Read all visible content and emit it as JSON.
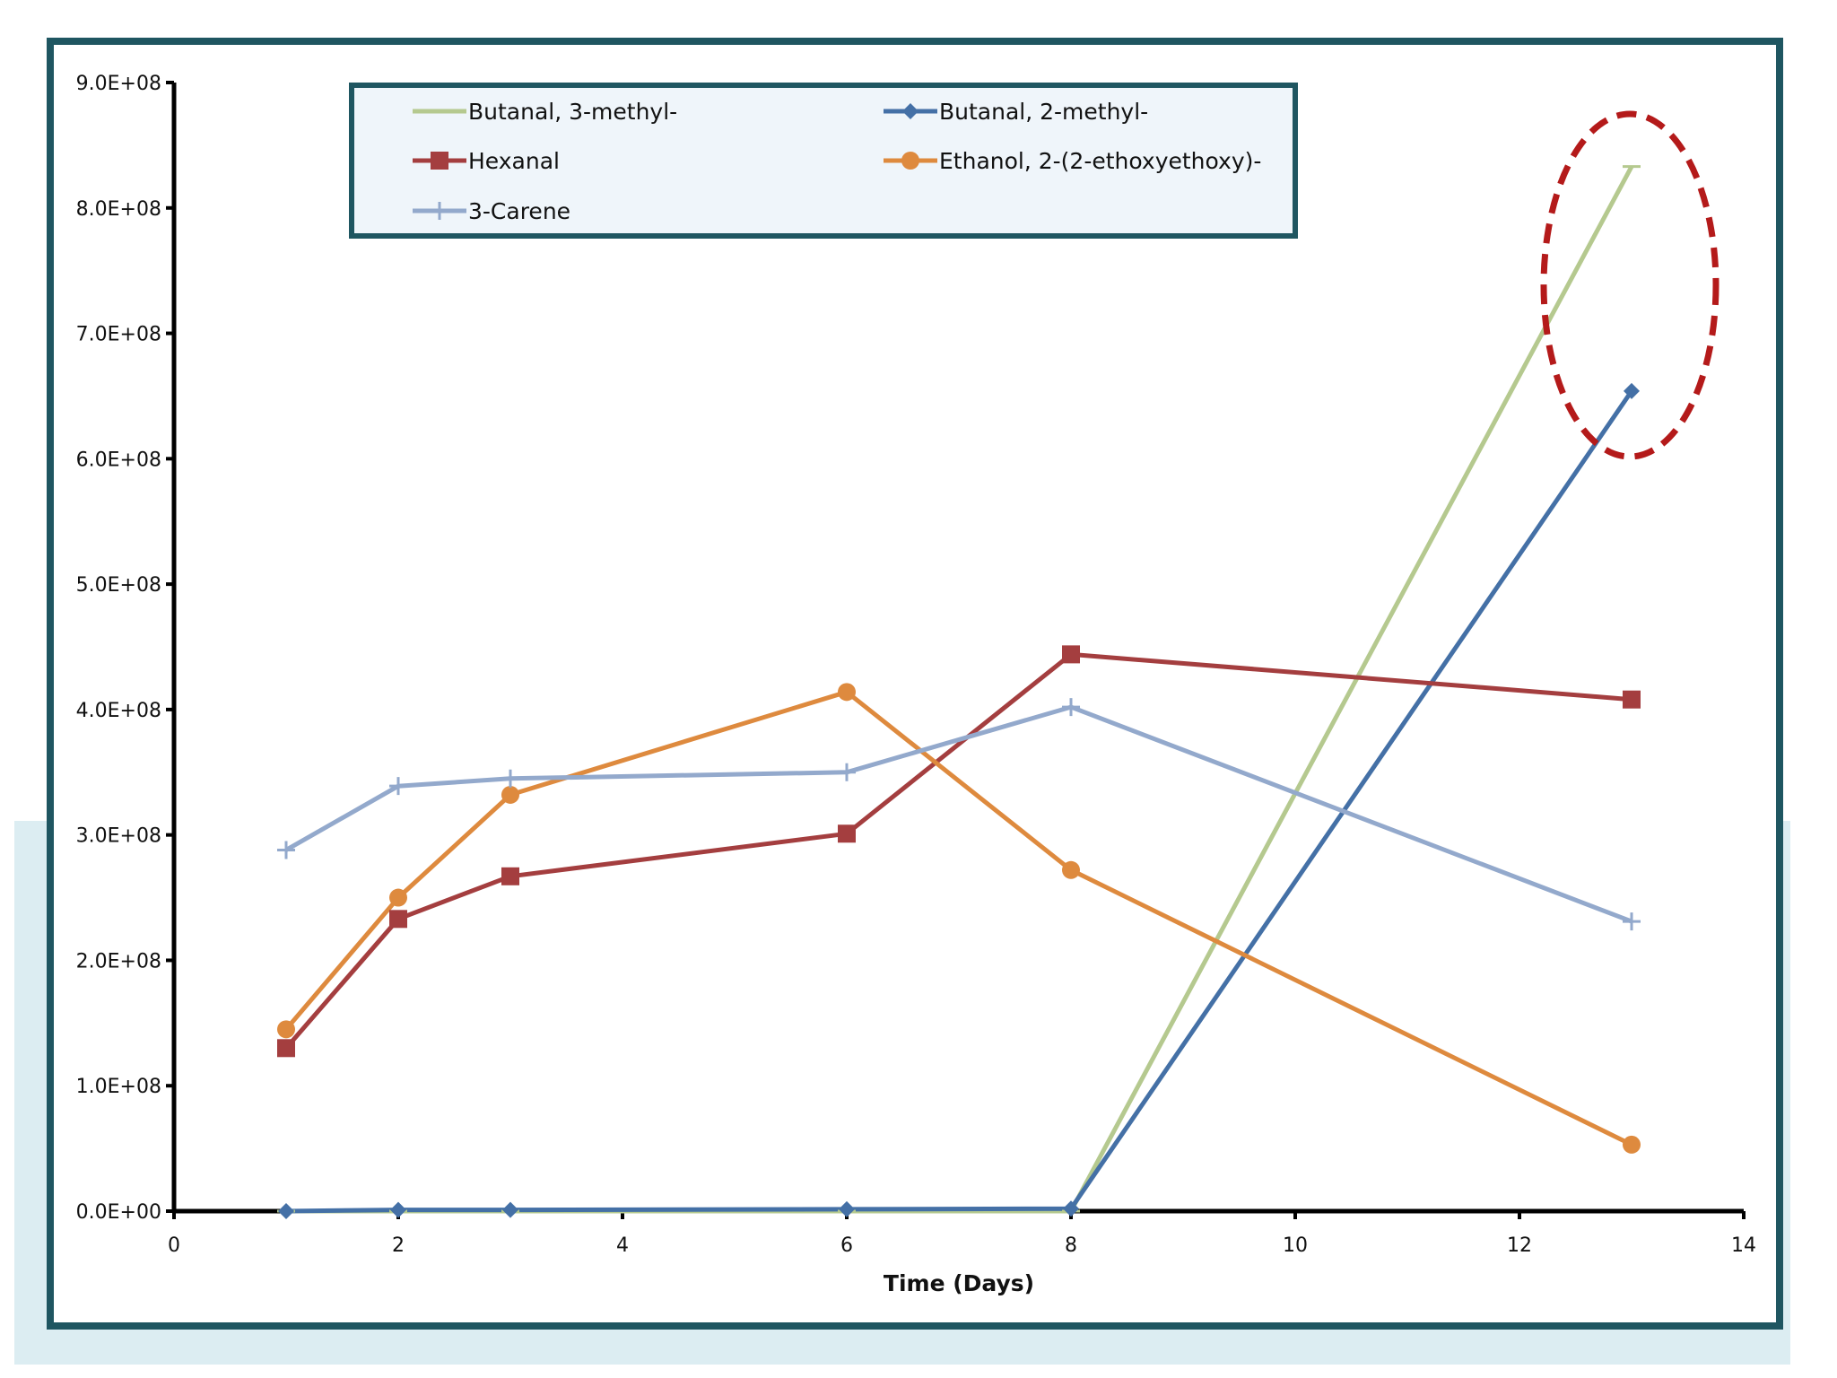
{
  "chart_data": {
    "type": "line",
    "title": "",
    "xlabel": "Time (Days)",
    "ylabel": "",
    "xlim": [
      0,
      14
    ],
    "ylim": [
      0,
      900000000
    ],
    "x_ticks": [
      "0",
      "2",
      "4",
      "6",
      "8",
      "10",
      "12",
      "14"
    ],
    "y_ticks": [
      "0.0E+00",
      "1.0E+08",
      "2.0E+08",
      "3.0E+08",
      "4.0E+08",
      "5.0E+08",
      "6.0E+08",
      "7.0E+08",
      "8.0E+08",
      "9.0E+08"
    ],
    "legend_position": "top",
    "grid": false,
    "highlight": "dashed red ellipse around the day-13 values of Butanal, 3-methyl- and Butanal, 2-methyl-",
    "series": [
      {
        "name": "Butanal, 3-methyl-",
        "color": "#b5c98f",
        "marker": "dash",
        "x": [
          1,
          2,
          3,
          6,
          8,
          13
        ],
        "values": [
          0,
          0,
          0,
          0,
          0,
          833000000
        ]
      },
      {
        "name": "Butanal, 2-methyl-",
        "color": "#4470a6",
        "marker": "diamond",
        "x": [
          1,
          2,
          3,
          6,
          8,
          13
        ],
        "values": [
          0,
          1000000,
          1000000,
          1500000,
          2000000,
          654000000
        ]
      },
      {
        "name": "Hexanal",
        "color": "#a43e3f",
        "marker": "square",
        "x": [
          1,
          2,
          3,
          6,
          8,
          13
        ],
        "values": [
          130000000,
          233000000,
          267000000,
          301000000,
          444000000,
          408000000
        ]
      },
      {
        "name": "Ethanol, 2-(2-ethoxyethoxy)-",
        "color": "#de8a3e",
        "marker": "circle",
        "x": [
          1,
          2,
          3,
          6,
          8,
          13
        ],
        "values": [
          145000000,
          250000000,
          332000000,
          414000000,
          272000000,
          53000000
        ]
      },
      {
        "name": "3-Carene",
        "color": "#93a9cc",
        "marker": "plus",
        "x": [
          1,
          2,
          3,
          6,
          8,
          13
        ],
        "values": [
          288000000,
          339000000,
          345000000,
          350000000,
          402000000,
          231000000
        ]
      }
    ]
  }
}
